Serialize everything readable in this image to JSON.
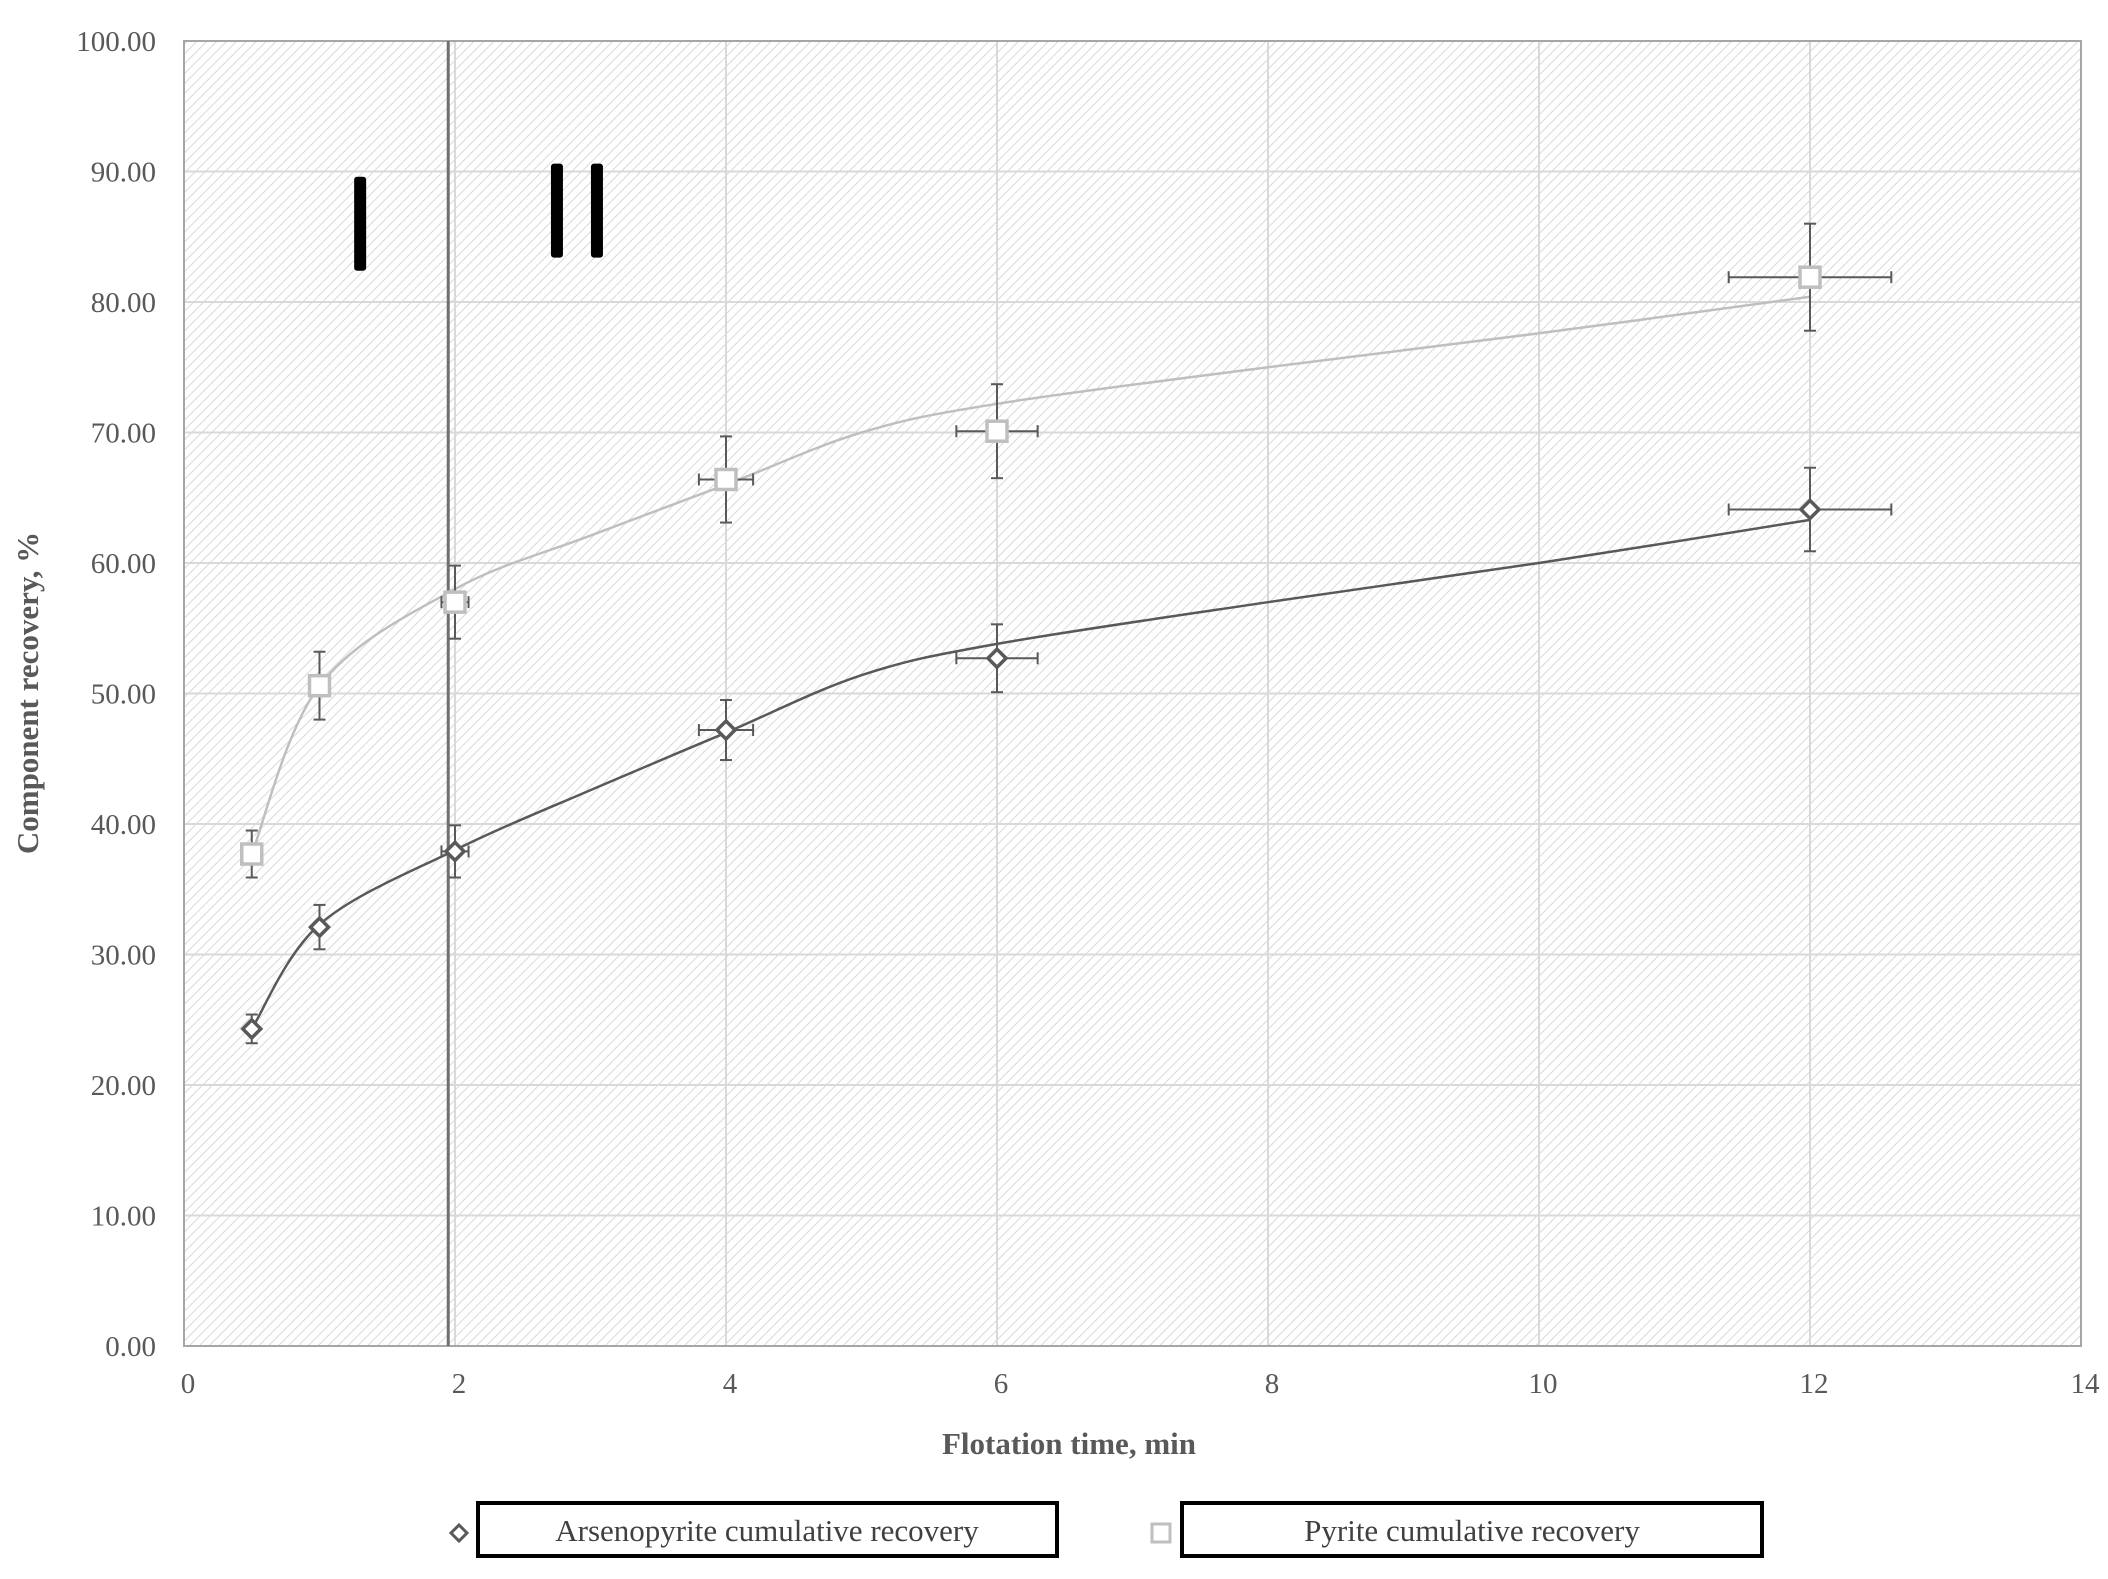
{
  "chart_data": {
    "type": "scatter",
    "title": "",
    "xlabel": "Flotation  time, min",
    "ylabel": "Component  recovery, %",
    "xlim": [
      0,
      14
    ],
    "ylim": [
      0,
      100
    ],
    "x_ticks": [
      "0",
      "2",
      "4",
      "6",
      "8",
      "10",
      "12",
      "14"
    ],
    "y_ticks": [
      "0.00",
      "10.00",
      "20.00",
      "30.00",
      "40.00",
      "50.00",
      "60.00",
      "70.00",
      "80.00",
      "90.00",
      "100.00"
    ],
    "grid": true,
    "legend_position": "bottom",
    "vertical_marker": {
      "x": 1.95
    },
    "region_labels": [
      {
        "text": "I",
        "x": 1.3,
        "y": 86
      },
      {
        "text": "II",
        "x": 2.9,
        "y": 87
      }
    ],
    "series": [
      {
        "name": "Arsenopyrite cumulative recovery",
        "marker": "diamond",
        "color": "#595959",
        "x": [
          0.5,
          1,
          2,
          4,
          6,
          12
        ],
        "y": [
          24.3,
          32.1,
          37.9,
          47.2,
          52.7,
          64.1
        ],
        "y_err": [
          1.1,
          1.7,
          2.0,
          2.3,
          2.6,
          3.2
        ],
        "x_err": [
          0,
          0,
          0.1,
          0.2,
          0.3,
          0.6
        ],
        "trend_x": [
          0.5,
          1,
          2,
          3,
          4,
          5,
          6,
          8,
          10,
          12
        ],
        "trend_y": [
          24.3,
          32.3,
          38.0,
          42.6,
          47.0,
          51.4,
          53.8,
          57.0,
          60.0,
          63.3
        ]
      },
      {
        "name": "Pyrite cumulative recovery",
        "marker": "square",
        "color": "#bfbfbf",
        "x": [
          0.5,
          1,
          2,
          4,
          6,
          12
        ],
        "y": [
          37.7,
          50.6,
          57.0,
          66.4,
          70.1,
          81.9
        ],
        "y_err": [
          1.8,
          2.6,
          2.8,
          3.3,
          3.6,
          4.1
        ],
        "x_err": [
          0,
          0,
          0.1,
          0.2,
          0.3,
          0.6
        ],
        "trend_x": [
          0.5,
          1,
          2,
          3,
          4,
          5,
          6,
          8,
          10,
          12
        ],
        "trend_y": [
          37.7,
          50.6,
          58.0,
          62.1,
          66.0,
          70.0,
          72.2,
          75.0,
          77.6,
          80.4
        ]
      }
    ]
  }
}
